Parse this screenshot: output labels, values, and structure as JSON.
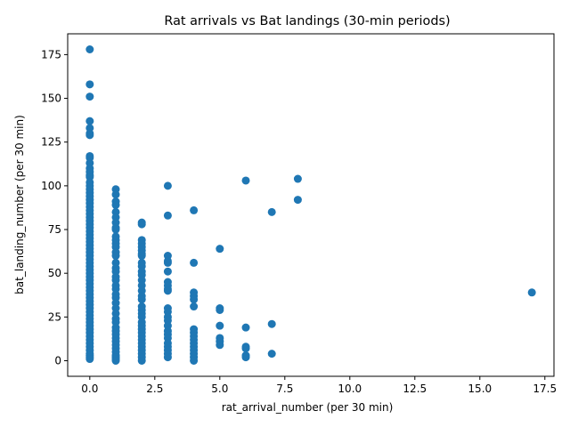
{
  "chart_data": {
    "type": "scatter",
    "title": "Rat arrivals vs Bat landings (30-min periods)",
    "xlabel": "rat_arrival_number (per 30 min)",
    "ylabel": "bat_landing_number (per 30 min)",
    "xlim": [
      -0.85,
      17.85
    ],
    "ylim": [
      -8.9,
      186.9
    ],
    "xticks": [
      0,
      2.5,
      5,
      7.5,
      10,
      12.5,
      15,
      17.5
    ],
    "xtick_labels": [
      "0.0",
      "2.5",
      "5.0",
      "7.5",
      "10.0",
      "12.5",
      "15.0",
      "17.5"
    ],
    "yticks": [
      0,
      25,
      50,
      75,
      100,
      125,
      150,
      175
    ],
    "ytick_labels": [
      "0",
      "25",
      "50",
      "75",
      "100",
      "125",
      "150",
      "175"
    ],
    "grid": false,
    "legend": "none",
    "marker_color": "#1f77b4",
    "points": [
      [
        0,
        178
      ],
      [
        0,
        158
      ],
      [
        0,
        151
      ],
      [
        0,
        137
      ],
      [
        0,
        133
      ],
      [
        0,
        130
      ],
      [
        0,
        129
      ],
      [
        0,
        117
      ],
      [
        0,
        116
      ],
      [
        0,
        113
      ],
      [
        0,
        110
      ],
      [
        0,
        108
      ],
      [
        0,
        106
      ],
      [
        0,
        105
      ],
      [
        0,
        102
      ],
      [
        0,
        100
      ],
      [
        0,
        98
      ],
      [
        0,
        96
      ],
      [
        0,
        94
      ],
      [
        0,
        92
      ],
      [
        0,
        90
      ],
      [
        0,
        88
      ],
      [
        0,
        86
      ],
      [
        0,
        84
      ],
      [
        0,
        82
      ],
      [
        0,
        80
      ],
      [
        0,
        78
      ],
      [
        0,
        76
      ],
      [
        0,
        74
      ],
      [
        0,
        72
      ],
      [
        0,
        70
      ],
      [
        0,
        68
      ],
      [
        0,
        66
      ],
      [
        0,
        64
      ],
      [
        0,
        62
      ],
      [
        0,
        60
      ],
      [
        0,
        58
      ],
      [
        0,
        56
      ],
      [
        0,
        54
      ],
      [
        0,
        52
      ],
      [
        0,
        50
      ],
      [
        0,
        48
      ],
      [
        0,
        46
      ],
      [
        0,
        44
      ],
      [
        0,
        42
      ],
      [
        0,
        40
      ],
      [
        0,
        38
      ],
      [
        0,
        36
      ],
      [
        0,
        34
      ],
      [
        0,
        32
      ],
      [
        0,
        30
      ],
      [
        0,
        28
      ],
      [
        0,
        26
      ],
      [
        0,
        24
      ],
      [
        0,
        22
      ],
      [
        0,
        20
      ],
      [
        0,
        18
      ],
      [
        0,
        16
      ],
      [
        0,
        14
      ],
      [
        0,
        12
      ],
      [
        0,
        10
      ],
      [
        0,
        8
      ],
      [
        0,
        6
      ],
      [
        0,
        4
      ],
      [
        0,
        3
      ],
      [
        0,
        2
      ],
      [
        0,
        1
      ],
      [
        1,
        98
      ],
      [
        1,
        95
      ],
      [
        1,
        91
      ],
      [
        1,
        89
      ],
      [
        1,
        85
      ],
      [
        1,
        82
      ],
      [
        1,
        79
      ],
      [
        1,
        76
      ],
      [
        1,
        75
      ],
      [
        1,
        71
      ],
      [
        1,
        69
      ],
      [
        1,
        67
      ],
      [
        1,
        65
      ],
      [
        1,
        62
      ],
      [
        1,
        60
      ],
      [
        1,
        56
      ],
      [
        1,
        53
      ],
      [
        1,
        51
      ],
      [
        1,
        48
      ],
      [
        1,
        46
      ],
      [
        1,
        43
      ],
      [
        1,
        41
      ],
      [
        1,
        38
      ],
      [
        1,
        36
      ],
      [
        1,
        33
      ],
      [
        1,
        30
      ],
      [
        1,
        27
      ],
      [
        1,
        24
      ],
      [
        1,
        22
      ],
      [
        1,
        19
      ],
      [
        1,
        17
      ],
      [
        1,
        15
      ],
      [
        1,
        13
      ],
      [
        1,
        11
      ],
      [
        1,
        9
      ],
      [
        1,
        7
      ],
      [
        1,
        5
      ],
      [
        1,
        3
      ],
      [
        1,
        2
      ],
      [
        1,
        1
      ],
      [
        1,
        0
      ],
      [
        2,
        79
      ],
      [
        2,
        78
      ],
      [
        2,
        69
      ],
      [
        2,
        67
      ],
      [
        2,
        65
      ],
      [
        2,
        63
      ],
      [
        2,
        61
      ],
      [
        2,
        60
      ],
      [
        2,
        56
      ],
      [
        2,
        54
      ],
      [
        2,
        51
      ],
      [
        2,
        49
      ],
      [
        2,
        46
      ],
      [
        2,
        43
      ],
      [
        2,
        40
      ],
      [
        2,
        37
      ],
      [
        2,
        35
      ],
      [
        2,
        31
      ],
      [
        2,
        29
      ],
      [
        2,
        27
      ],
      [
        2,
        25
      ],
      [
        2,
        22
      ],
      [
        2,
        20
      ],
      [
        2,
        18
      ],
      [
        2,
        16
      ],
      [
        2,
        14
      ],
      [
        2,
        12
      ],
      [
        2,
        10
      ],
      [
        2,
        8
      ],
      [
        2,
        6
      ],
      [
        2,
        4
      ],
      [
        2,
        2
      ],
      [
        2,
        0
      ],
      [
        3,
        100
      ],
      [
        3,
        83
      ],
      [
        3,
        60
      ],
      [
        3,
        57
      ],
      [
        3,
        56
      ],
      [
        3,
        51
      ],
      [
        3,
        45
      ],
      [
        3,
        43
      ],
      [
        3,
        41
      ],
      [
        3,
        40
      ],
      [
        3,
        30
      ],
      [
        3,
        28
      ],
      [
        3,
        25
      ],
      [
        3,
        23
      ],
      [
        3,
        20
      ],
      [
        3,
        17
      ],
      [
        3,
        15
      ],
      [
        3,
        13
      ],
      [
        3,
        10
      ],
      [
        3,
        8
      ],
      [
        3,
        6
      ],
      [
        3,
        4
      ],
      [
        3,
        2
      ],
      [
        4,
        86
      ],
      [
        4,
        56
      ],
      [
        4,
        39
      ],
      [
        4,
        37
      ],
      [
        4,
        35
      ],
      [
        4,
        31
      ],
      [
        4,
        18
      ],
      [
        4,
        16
      ],
      [
        4,
        14
      ],
      [
        4,
        12
      ],
      [
        4,
        10
      ],
      [
        4,
        8
      ],
      [
        4,
        6
      ],
      [
        4,
        4
      ],
      [
        4,
        2
      ],
      [
        4,
        0
      ],
      [
        5,
        64
      ],
      [
        5,
        30
      ],
      [
        5,
        29
      ],
      [
        5,
        20
      ],
      [
        5,
        13
      ],
      [
        5,
        11
      ],
      [
        5,
        9
      ],
      [
        6,
        103
      ],
      [
        6,
        19
      ],
      [
        6,
        8
      ],
      [
        6,
        7
      ],
      [
        6,
        3
      ],
      [
        6,
        2
      ],
      [
        7,
        85
      ],
      [
        7,
        21
      ],
      [
        7,
        4
      ],
      [
        8,
        104
      ],
      [
        8,
        92
      ],
      [
        17,
        39
      ]
    ]
  }
}
